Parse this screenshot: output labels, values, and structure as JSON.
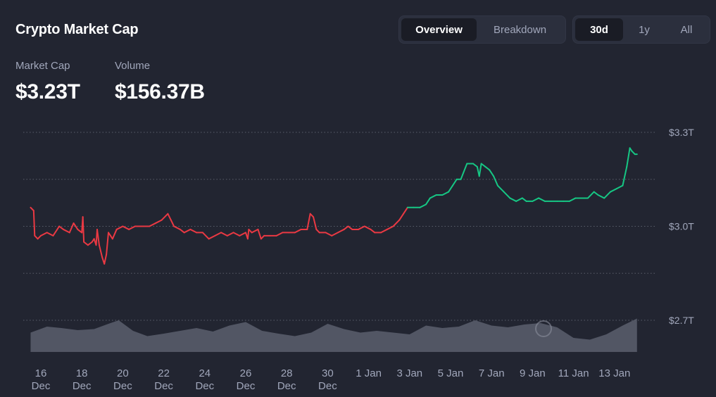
{
  "header": {
    "title": "Crypto Market Cap",
    "view_tabs": [
      {
        "label": "Overview",
        "active": true
      },
      {
        "label": "Breakdown",
        "active": false
      }
    ],
    "range_tabs": [
      {
        "label": "30d",
        "active": true
      },
      {
        "label": "1y",
        "active": false
      },
      {
        "label": "All",
        "active": false
      }
    ]
  },
  "stats": {
    "market_cap_label": "Market Cap",
    "market_cap_value": "$3.23T",
    "volume_label": "Volume",
    "volume_value": "$156.37B"
  },
  "colors": {
    "background": "#222531",
    "up": "#16c784",
    "down": "#ea3943",
    "volume": "#5b5f6d",
    "muted_text": "#a1a7bb"
  },
  "chart_data": {
    "type": "line",
    "ylim": [
      2.7,
      3.3
    ],
    "y_ticks": [
      {
        "value": 3.3,
        "label": "$3.3T"
      },
      {
        "value": 3.0,
        "label": "$3.0T"
      },
      {
        "value": 2.7,
        "label": "$2.7T"
      }
    ],
    "y_gridlines": [
      3.3,
      3.15,
      3.0,
      2.85,
      2.7
    ],
    "x_ticks": [
      {
        "day": 0,
        "label": [
          "16",
          "Dec"
        ]
      },
      {
        "day": 2,
        "label": [
          "18",
          "Dec"
        ]
      },
      {
        "day": 4,
        "label": [
          "20",
          "Dec"
        ]
      },
      {
        "day": 6,
        "label": [
          "22",
          "Dec"
        ]
      },
      {
        "day": 8,
        "label": [
          "24",
          "Dec"
        ]
      },
      {
        "day": 10,
        "label": [
          "26",
          "Dec"
        ]
      },
      {
        "day": 12,
        "label": [
          "28",
          "Dec"
        ]
      },
      {
        "day": 14,
        "label": [
          "30",
          "Dec"
        ]
      },
      {
        "day": 16,
        "label": [
          "1 Jan"
        ]
      },
      {
        "day": 18,
        "label": [
          "3 Jan"
        ]
      },
      {
        "day": 20,
        "label": [
          "5 Jan"
        ]
      },
      {
        "day": 22,
        "label": [
          "7 Jan"
        ]
      },
      {
        "day": 24,
        "label": [
          "9 Jan"
        ]
      },
      {
        "day": 26,
        "label": [
          "11 Jan"
        ]
      },
      {
        "day": 28,
        "label": [
          "13 Jan"
        ]
      }
    ],
    "series": [
      {
        "baseline_color_rule": "red below 3.04, green above",
        "points": [
          [
            -0.5,
            3.06
          ],
          [
            -0.35,
            3.05
          ],
          [
            -0.3,
            2.97
          ],
          [
            -0.15,
            2.96
          ],
          [
            0.0,
            2.97
          ],
          [
            0.3,
            2.98
          ],
          [
            0.6,
            2.97
          ],
          [
            0.9,
            3.0
          ],
          [
            1.1,
            2.99
          ],
          [
            1.4,
            2.98
          ],
          [
            1.6,
            3.01
          ],
          [
            1.8,
            2.99
          ],
          [
            2.0,
            2.98
          ],
          [
            2.05,
            3.03
          ],
          [
            2.1,
            2.95
          ],
          [
            2.3,
            2.94
          ],
          [
            2.5,
            2.95
          ],
          [
            2.6,
            2.96
          ],
          [
            2.7,
            2.94
          ],
          [
            2.75,
            2.99
          ],
          [
            2.85,
            2.94
          ],
          [
            3.0,
            2.9
          ],
          [
            3.1,
            2.88
          ],
          [
            3.2,
            2.91
          ],
          [
            3.3,
            2.98
          ],
          [
            3.4,
            2.97
          ],
          [
            3.5,
            2.96
          ],
          [
            3.7,
            2.99
          ],
          [
            4.0,
            3.0
          ],
          [
            4.3,
            2.99
          ],
          [
            4.6,
            3.0
          ],
          [
            5.0,
            3.0
          ],
          [
            5.3,
            3.0
          ],
          [
            5.6,
            3.01
          ],
          [
            5.9,
            3.02
          ],
          [
            6.2,
            3.04
          ],
          [
            6.35,
            3.02
          ],
          [
            6.5,
            3.0
          ],
          [
            6.8,
            2.99
          ],
          [
            7.0,
            2.98
          ],
          [
            7.3,
            2.99
          ],
          [
            7.6,
            2.98
          ],
          [
            7.9,
            2.98
          ],
          [
            8.2,
            2.96
          ],
          [
            8.5,
            2.97
          ],
          [
            8.8,
            2.98
          ],
          [
            9.1,
            2.97
          ],
          [
            9.4,
            2.98
          ],
          [
            9.7,
            2.97
          ],
          [
            10.0,
            2.98
          ],
          [
            10.1,
            2.96
          ],
          [
            10.15,
            2.99
          ],
          [
            10.3,
            2.98
          ],
          [
            10.6,
            2.99
          ],
          [
            10.75,
            2.96
          ],
          [
            10.9,
            2.97
          ],
          [
            11.2,
            2.97
          ],
          [
            11.5,
            2.97
          ],
          [
            11.8,
            2.98
          ],
          [
            12.1,
            2.98
          ],
          [
            12.4,
            2.98
          ],
          [
            12.7,
            2.99
          ],
          [
            13.0,
            2.99
          ],
          [
            13.15,
            3.04
          ],
          [
            13.3,
            3.03
          ],
          [
            13.45,
            2.99
          ],
          [
            13.6,
            2.98
          ],
          [
            13.9,
            2.98
          ],
          [
            14.2,
            2.97
          ],
          [
            14.5,
            2.98
          ],
          [
            14.8,
            2.99
          ],
          [
            15.0,
            3.0
          ],
          [
            15.2,
            2.99
          ],
          [
            15.5,
            2.99
          ],
          [
            15.8,
            3.0
          ],
          [
            16.1,
            2.99
          ],
          [
            16.3,
            2.98
          ],
          [
            16.6,
            2.98
          ],
          [
            16.9,
            2.99
          ],
          [
            17.2,
            3.0
          ],
          [
            17.5,
            3.02
          ],
          [
            17.7,
            3.04
          ],
          [
            17.9,
            3.06
          ],
          [
            18.2,
            3.06
          ],
          [
            18.5,
            3.06
          ],
          [
            18.8,
            3.07
          ],
          [
            19.0,
            3.09
          ],
          [
            19.3,
            3.1
          ],
          [
            19.6,
            3.1
          ],
          [
            19.9,
            3.11
          ],
          [
            20.1,
            3.13
          ],
          [
            20.3,
            3.15
          ],
          [
            20.5,
            3.15
          ],
          [
            20.8,
            3.2
          ],
          [
            21.1,
            3.2
          ],
          [
            21.3,
            3.19
          ],
          [
            21.4,
            3.16
          ],
          [
            21.5,
            3.2
          ],
          [
            21.7,
            3.19
          ],
          [
            21.9,
            3.18
          ],
          [
            22.1,
            3.16
          ],
          [
            22.3,
            3.13
          ],
          [
            22.6,
            3.11
          ],
          [
            22.9,
            3.09
          ],
          [
            23.2,
            3.08
          ],
          [
            23.5,
            3.09
          ],
          [
            23.7,
            3.08
          ],
          [
            24.0,
            3.08
          ],
          [
            24.3,
            3.09
          ],
          [
            24.6,
            3.08
          ],
          [
            24.9,
            3.08
          ],
          [
            25.2,
            3.08
          ],
          [
            25.5,
            3.08
          ],
          [
            25.8,
            3.08
          ],
          [
            26.1,
            3.09
          ],
          [
            26.4,
            3.09
          ],
          [
            26.7,
            3.09
          ],
          [
            27.0,
            3.11
          ],
          [
            27.2,
            3.1
          ],
          [
            27.5,
            3.09
          ],
          [
            27.8,
            3.11
          ],
          [
            28.1,
            3.12
          ],
          [
            28.4,
            3.13
          ],
          [
            28.6,
            3.19
          ],
          [
            28.75,
            3.25
          ],
          [
            28.85,
            3.24
          ],
          [
            29.0,
            3.23
          ],
          [
            29.1,
            3.23
          ]
        ]
      }
    ],
    "volume": {
      "points": [
        [
          -0.5,
          0.55
        ],
        [
          0.3,
          0.72
        ],
        [
          1.0,
          0.68
        ],
        [
          1.8,
          0.62
        ],
        [
          2.6,
          0.65
        ],
        [
          3.3,
          0.8
        ],
        [
          3.8,
          0.9
        ],
        [
          4.5,
          0.6
        ],
        [
          5.2,
          0.45
        ],
        [
          6.0,
          0.52
        ],
        [
          6.8,
          0.6
        ],
        [
          7.6,
          0.68
        ],
        [
          8.4,
          0.58
        ],
        [
          9.2,
          0.75
        ],
        [
          10.0,
          0.85
        ],
        [
          10.8,
          0.6
        ],
        [
          11.6,
          0.52
        ],
        [
          12.4,
          0.45
        ],
        [
          13.2,
          0.55
        ],
        [
          14.0,
          0.8
        ],
        [
          14.8,
          0.65
        ],
        [
          15.6,
          0.55
        ],
        [
          16.4,
          0.6
        ],
        [
          17.2,
          0.55
        ],
        [
          18.0,
          0.5
        ],
        [
          18.8,
          0.75
        ],
        [
          19.6,
          0.68
        ],
        [
          20.4,
          0.72
        ],
        [
          21.2,
          0.9
        ],
        [
          22.0,
          0.75
        ],
        [
          22.8,
          0.7
        ],
        [
          23.6,
          0.78
        ],
        [
          24.4,
          0.82
        ],
        [
          25.2,
          0.7
        ],
        [
          26.0,
          0.4
        ],
        [
          26.8,
          0.35
        ],
        [
          27.6,
          0.5
        ],
        [
          28.4,
          0.75
        ],
        [
          29.1,
          0.95
        ]
      ]
    }
  }
}
